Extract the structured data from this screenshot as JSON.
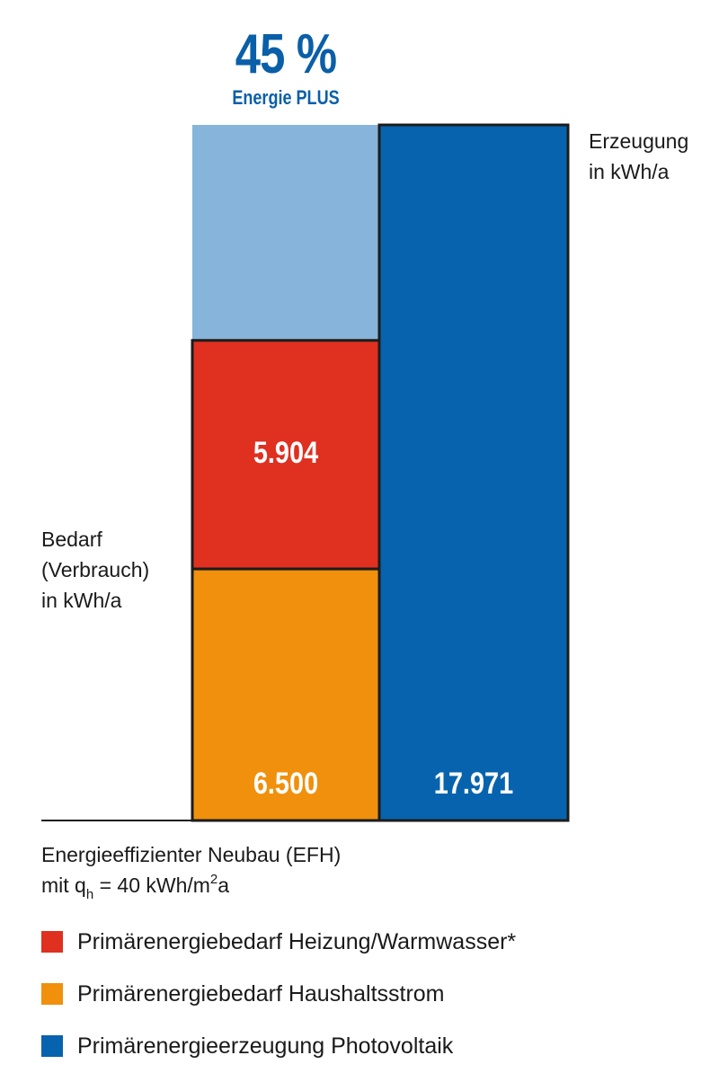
{
  "header": {
    "percent": "45 %",
    "subtitle": "Energie PLUS"
  },
  "labels": {
    "bedarf": [
      "Bedarf",
      "(Verbrauch)",
      "in kWh/a"
    ],
    "erzeugung": [
      "Erzeugung",
      "in kWh/a"
    ]
  },
  "caption": {
    "line1": "Energieeffizienter Neubau (EFH)",
    "line2_prefix": "mit q",
    "line2_sub": "h",
    "line2_mid": " = 40 kWh/m",
    "line2_sup": "2",
    "line2_suffix": "a"
  },
  "colors": {
    "heating": "#df3020",
    "household": "#f0900c",
    "pv": "#0763ad",
    "surplus": "#86b4da",
    "outline": "#1c1c1c"
  },
  "legend": [
    {
      "label": "Primärenergiebedarf Heizung/Warmwasser*",
      "color": "#df3020"
    },
    {
      "label": "Primärenergiebedarf Haushaltsstrom",
      "color": "#f0900c"
    },
    {
      "label": "Primärenergieerzeugung Photovoltaik",
      "color": "#0763ad"
    }
  ],
  "chart_data": {
    "type": "bar",
    "stacked": true,
    "categories": [
      "Bedarf",
      "Erzeugung"
    ],
    "series": [
      {
        "name": "Primärenergiebedarf Haushaltsstrom",
        "values": [
          6500,
          0
        ],
        "label": "6.500"
      },
      {
        "name": "Primärenergiebedarf Heizung/Warmwasser*",
        "values": [
          5904,
          0
        ],
        "label": "5.904"
      },
      {
        "name": "Primärenergieerzeugung Photovoltaik",
        "values": [
          0,
          17971
        ],
        "label": "17.971"
      }
    ],
    "surplus": {
      "percent": 45,
      "value": 5567
    },
    "ylim": [
      0,
      17971
    ]
  }
}
